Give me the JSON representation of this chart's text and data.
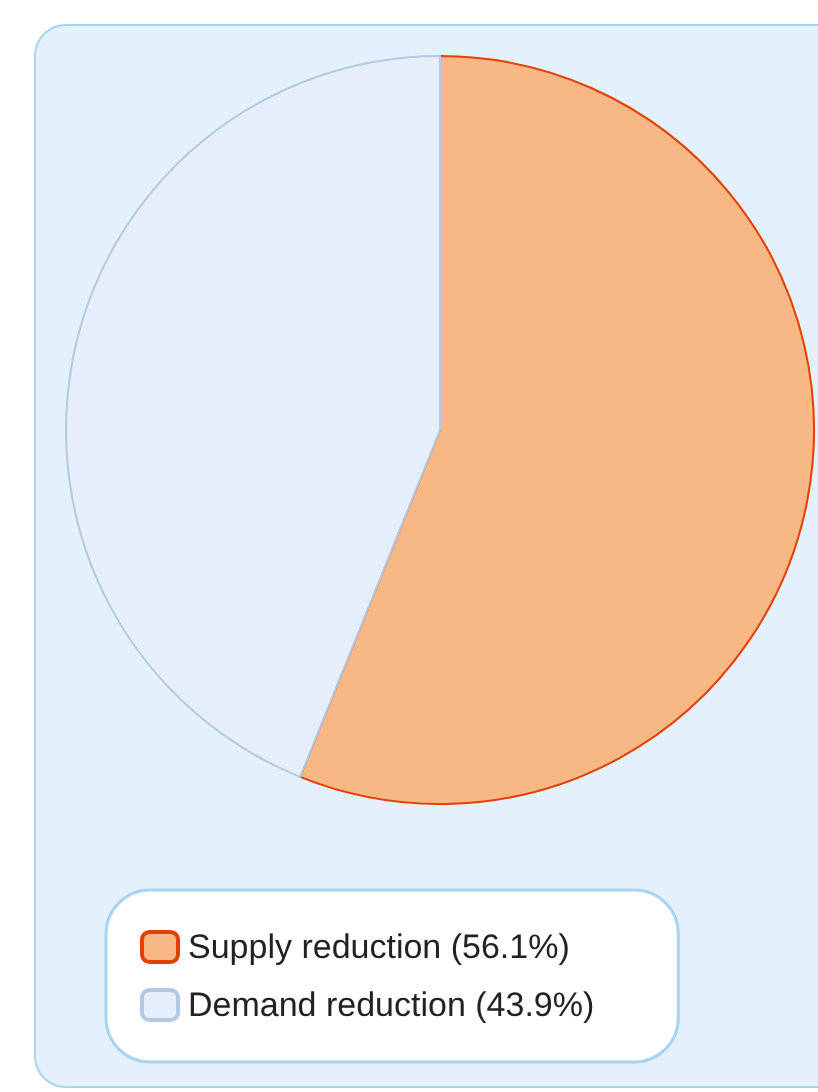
{
  "chart_data": {
    "type": "pie",
    "categories": [
      "Supply reduction (56.1%)",
      "Demand reduction (43.9%)"
    ],
    "values": [
      56.1,
      43.9
    ],
    "colors": [
      "#f8b886",
      "#e6eef9"
    ],
    "legend": "bottom"
  }
}
